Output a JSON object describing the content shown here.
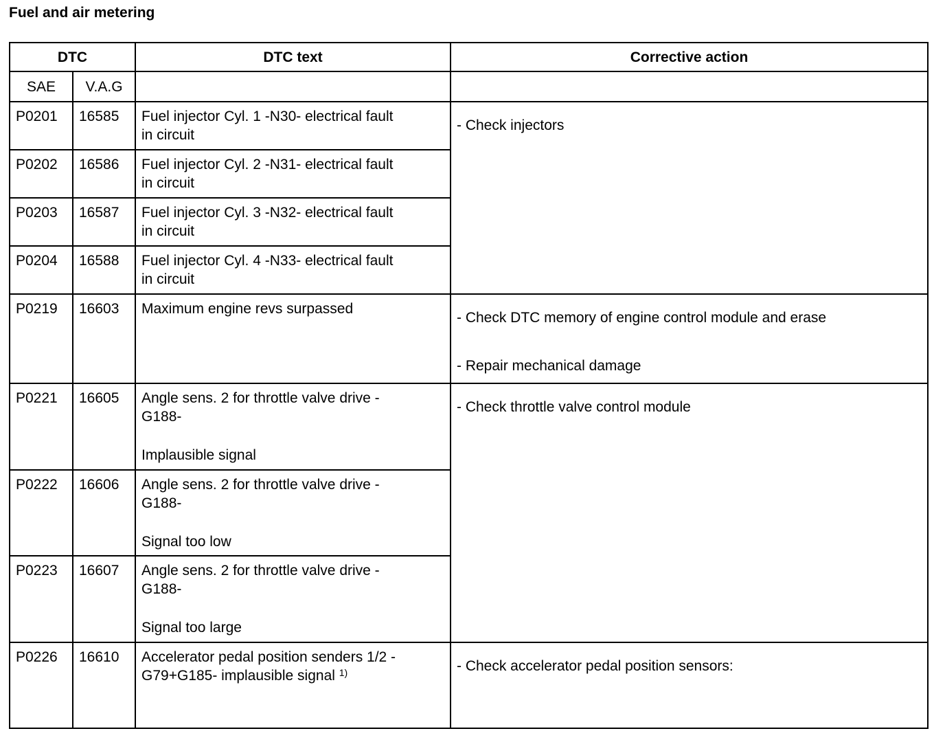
{
  "title": "Fuel and air metering",
  "headers": {
    "dtc": "DTC",
    "dtc_text": "DTC text",
    "corrective_action": "Corrective action",
    "sae": "SAE",
    "vag": "V.A.G"
  },
  "rows": [
    {
      "sae": "P0201",
      "vag": "16585",
      "text": [
        "Fuel injector Cyl. 1 -N30- electrical fault",
        "in circuit"
      ]
    },
    {
      "sae": "P0202",
      "vag": "16586",
      "text": [
        "Fuel injector Cyl. 2 -N31- electrical fault",
        "in circuit"
      ]
    },
    {
      "sae": "P0203",
      "vag": "16587",
      "text": [
        "Fuel injector Cyl. 3 -N32- electrical fault",
        "in circuit"
      ]
    },
    {
      "sae": "P0204",
      "vag": "16588",
      "text": [
        "Fuel injector Cyl. 4 -N33- electrical fault",
        "in circuit"
      ]
    },
    {
      "sae": "P0219",
      "vag": "16603",
      "text": [
        "Maximum engine revs surpassed"
      ]
    },
    {
      "sae": "P0221",
      "vag": "16605",
      "text": [
        "Angle sens. 2 for throttle valve drive -",
        "G188-",
        "Implausible signal"
      ]
    },
    {
      "sae": "P0222",
      "vag": "16606",
      "text": [
        "Angle sens. 2 for throttle valve drive -",
        "G188-",
        "Signal too low"
      ]
    },
    {
      "sae": "P0223",
      "vag": "16607",
      "text": [
        "Angle sens. 2 for throttle valve drive -",
        "G188-",
        "Signal too large"
      ]
    },
    {
      "sae": "P0226",
      "vag": "16610",
      "text": [
        "Accelerator pedal position senders 1/2 -",
        "G79+G185- implausible signal"
      ],
      "footnote": "1)"
    }
  ],
  "actions": [
    [
      "- Check injectors"
    ],
    [
      "- Check DTC memory of engine control module and erase",
      "- Repair mechanical damage"
    ],
    [
      "- Check throttle valve control module"
    ],
    [
      "- Check accelerator pedal position sensors:"
    ]
  ]
}
